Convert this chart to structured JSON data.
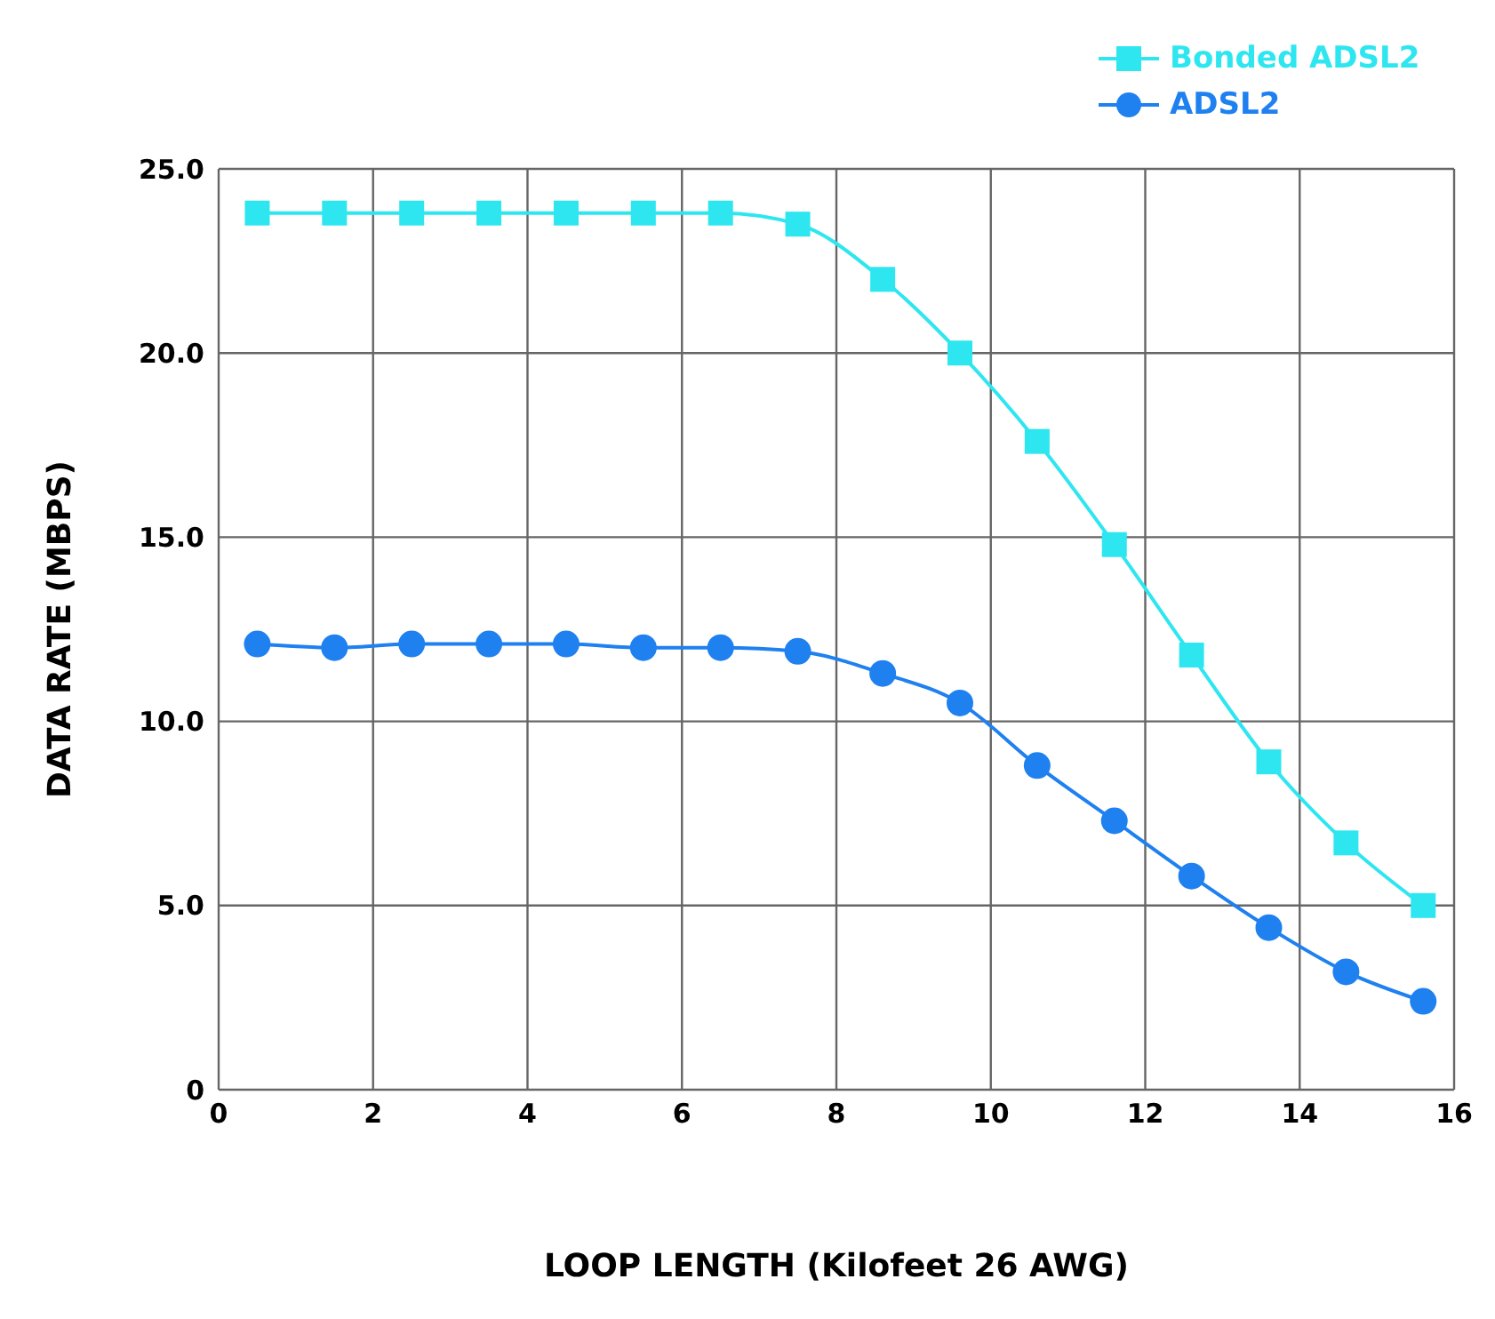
{
  "chart_data": {
    "type": "line",
    "xlabel": "LOOP LENGTH (Kilofeet 26 AWG)",
    "ylabel": "DATA RATE (MBPS)",
    "x": [
      0.5,
      1.5,
      2.5,
      3.5,
      4.5,
      5.5,
      6.5,
      7.5,
      8.6,
      9.6,
      10.6,
      11.6,
      12.6,
      13.6,
      14.6,
      15.6
    ],
    "series": [
      {
        "name": "Bonded ADSL2",
        "color": "#2ee6f0",
        "marker": "square",
        "values": [
          23.8,
          23.8,
          23.8,
          23.8,
          23.8,
          23.8,
          23.8,
          23.5,
          22.0,
          20.0,
          17.6,
          14.8,
          11.8,
          8.9,
          6.7,
          5.0
        ]
      },
      {
        "name": "ADSL2",
        "color": "#1f80f0",
        "marker": "circle",
        "values": [
          12.1,
          12.0,
          12.1,
          12.1,
          12.1,
          12.0,
          12.0,
          11.9,
          11.3,
          10.5,
          8.8,
          7.3,
          5.8,
          4.4,
          3.2,
          2.4
        ]
      }
    ],
    "xlim": [
      0,
      16
    ],
    "xticks": [
      0,
      2,
      4,
      6,
      8,
      10,
      12,
      14,
      16
    ],
    "ylim": [
      0,
      25
    ],
    "yticks": [
      {
        "value": 0,
        "label": "0"
      },
      {
        "value": 5,
        "label": "5.0"
      },
      {
        "value": 10,
        "label": "10.0"
      },
      {
        "value": 15,
        "label": "15.0"
      },
      {
        "value": 20,
        "label": "20.0"
      },
      {
        "value": 25,
        "label": "25.0"
      }
    ],
    "grid": true,
    "legend": "top right",
    "line_style": "solid"
  }
}
